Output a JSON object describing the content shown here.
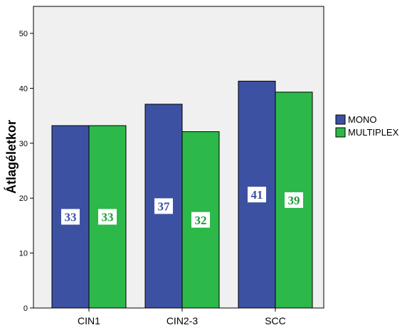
{
  "chart_data": {
    "type": "bar",
    "ylabel": "Átlagéletkor",
    "xlabel": "",
    "ylim": [
      0,
      55
    ],
    "yticks": [
      0,
      10,
      20,
      30,
      40,
      50
    ],
    "categories": [
      "CIN1",
      "CIN2-3",
      "SCC"
    ],
    "series": [
      {
        "name": "MONO",
        "values": [
          33.2,
          37.1,
          41.3
        ],
        "labels": [
          "33",
          "37",
          "41"
        ],
        "color": "#3D51A3",
        "label_color": "#3D51A3"
      },
      {
        "name": "MULTIPLEX",
        "values": [
          33.2,
          32.1,
          39.3
        ],
        "labels": [
          "33",
          "32",
          "39"
        ],
        "color": "#2DB84A",
        "label_color": "#1E9C3A"
      }
    ],
    "plot_background": "#F0F0F0",
    "grid": false,
    "legend_position": "right"
  }
}
